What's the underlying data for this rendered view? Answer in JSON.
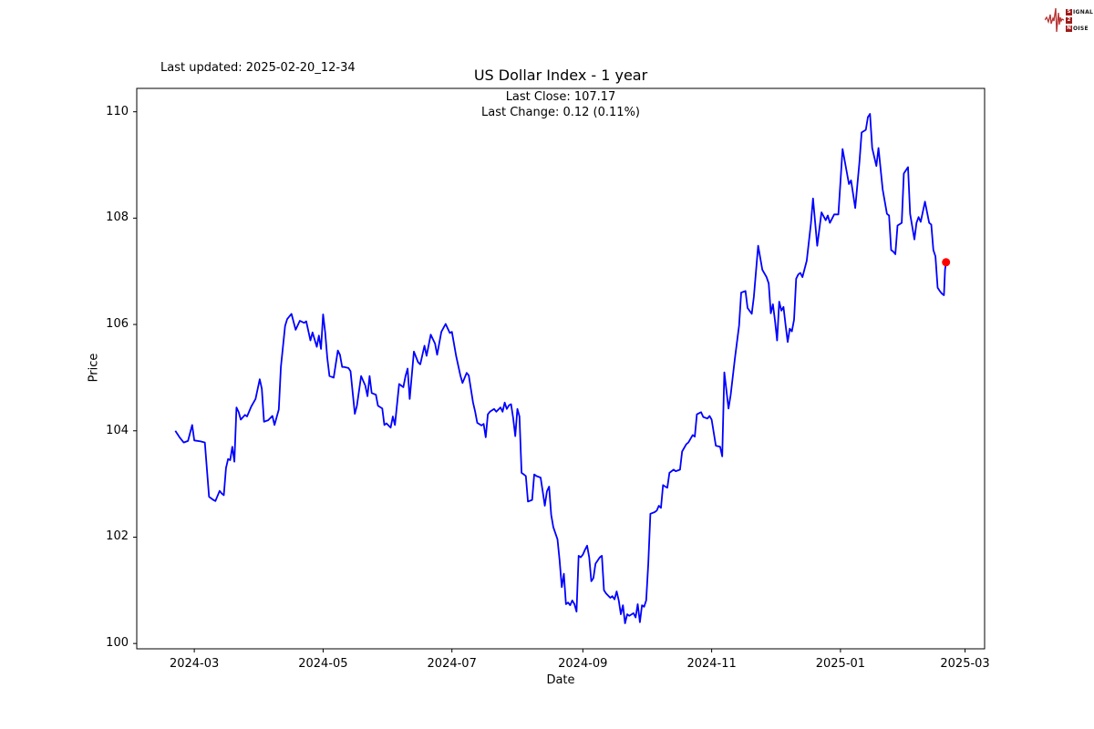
{
  "header": {
    "last_updated": "Last updated: 2025-02-20_12-34"
  },
  "logo": {
    "rows": [
      {
        "boxed": "S",
        "rest": "IGNAL"
      },
      {
        "boxed": "2",
        "rest": ""
      },
      {
        "boxed": "N",
        "rest": "OISE"
      }
    ],
    "waveform_color": "#b73333",
    "box_color": "#9e1b1b"
  },
  "chart_data": {
    "type": "line",
    "title": "US Dollar Index - 1 year",
    "subtitle_lines": [
      "Last Close: 107.17",
      "Last Change: 0.12 (0.11%)"
    ],
    "xlabel": "Date",
    "ylabel": "Price",
    "last_close": 107.17,
    "last_change": 0.12,
    "last_change_pct": "0.11%",
    "line_color": "#0000ff",
    "marker_color": "#ff0000",
    "background": "#ffffff",
    "grid": false,
    "legend": "none",
    "x_unit": "days since 2024-02-21",
    "x_start_date": "2024-02-21",
    "x_end_date": "2025-02-20",
    "xlim_days": [
      -18.25,
      383.25
    ],
    "ylim": [
      99.9,
      110.44
    ],
    "yticks": [
      100,
      102,
      104,
      106,
      108,
      110
    ],
    "xticks": [
      {
        "label": "2024-03",
        "day": 9
      },
      {
        "label": "2024-05",
        "day": 70
      },
      {
        "label": "2024-07",
        "day": 131
      },
      {
        "label": "2024-09",
        "day": 193
      },
      {
        "label": "2024-11",
        "day": 254
      },
      {
        "label": "2025-01",
        "day": 315
      },
      {
        "label": "2025-03",
        "day": 374
      }
    ],
    "points": [
      [
        0,
        104.0
      ],
      [
        2,
        103.88
      ],
      [
        4,
        103.78
      ],
      [
        6,
        103.81
      ],
      [
        8,
        104.11
      ],
      [
        9,
        103.82
      ],
      [
        12,
        103.8
      ],
      [
        14,
        103.78
      ],
      [
        15,
        103.27
      ],
      [
        16,
        102.76
      ],
      [
        18,
        102.7
      ],
      [
        19,
        102.68
      ],
      [
        21,
        102.87
      ],
      [
        22,
        102.82
      ],
      [
        23,
        102.79
      ],
      [
        24,
        103.3
      ],
      [
        25,
        103.47
      ],
      [
        26,
        103.45
      ],
      [
        27,
        103.7
      ],
      [
        28,
        103.42
      ],
      [
        29,
        104.44
      ],
      [
        30,
        104.35
      ],
      [
        31,
        104.21
      ],
      [
        33,
        104.3
      ],
      [
        34,
        104.27
      ],
      [
        36,
        104.46
      ],
      [
        38,
        104.6
      ],
      [
        40,
        104.97
      ],
      [
        41,
        104.79
      ],
      [
        42,
        104.17
      ],
      [
        44,
        104.2
      ],
      [
        46,
        104.28
      ],
      [
        47,
        104.11
      ],
      [
        49,
        104.4
      ],
      [
        50,
        105.2
      ],
      [
        52,
        105.97
      ],
      [
        53,
        106.1
      ],
      [
        55,
        106.2
      ],
      [
        57,
        105.9
      ],
      [
        59,
        106.07
      ],
      [
        61,
        106.03
      ],
      [
        62,
        106.06
      ],
      [
        64,
        105.7
      ],
      [
        65,
        105.85
      ],
      [
        67,
        105.58
      ],
      [
        68,
        105.79
      ],
      [
        69,
        105.54
      ],
      [
        70,
        106.19
      ],
      [
        71,
        105.85
      ],
      [
        72,
        105.37
      ],
      [
        73,
        105.03
      ],
      [
        75,
        105.0
      ],
      [
        77,
        105.51
      ],
      [
        78,
        105.43
      ],
      [
        79,
        105.2
      ],
      [
        80,
        105.2
      ],
      [
        82,
        105.18
      ],
      [
        83,
        105.12
      ],
      [
        85,
        104.32
      ],
      [
        86,
        104.47
      ],
      [
        88,
        105.03
      ],
      [
        90,
        104.85
      ],
      [
        91,
        104.65
      ],
      [
        92,
        105.03
      ],
      [
        93,
        104.71
      ],
      [
        95,
        104.68
      ],
      [
        96,
        104.47
      ],
      [
        98,
        104.42
      ],
      [
        99,
        104.11
      ],
      [
        100,
        104.14
      ],
      [
        102,
        104.06
      ],
      [
        103,
        104.27
      ],
      [
        104,
        104.11
      ],
      [
        106,
        104.88
      ],
      [
        108,
        104.82
      ],
      [
        109,
        105.03
      ],
      [
        110,
        105.17
      ],
      [
        111,
        104.6
      ],
      [
        113,
        105.49
      ],
      [
        115,
        105.29
      ],
      [
        116,
        105.25
      ],
      [
        118,
        105.6
      ],
      [
        119,
        105.41
      ],
      [
        121,
        105.81
      ],
      [
        123,
        105.64
      ],
      [
        124,
        105.43
      ],
      [
        126,
        105.86
      ],
      [
        128,
        106.01
      ],
      [
        130,
        105.84
      ],
      [
        131,
        105.86
      ],
      [
        133,
        105.41
      ],
      [
        135,
        105.04
      ],
      [
        136,
        104.9
      ],
      [
        138,
        105.09
      ],
      [
        139,
        105.04
      ],
      [
        141,
        104.53
      ],
      [
        142,
        104.36
      ],
      [
        143,
        104.15
      ],
      [
        145,
        104.1
      ],
      [
        146,
        104.13
      ],
      [
        147,
        103.88
      ],
      [
        148,
        104.31
      ],
      [
        149,
        104.36
      ],
      [
        151,
        104.41
      ],
      [
        152,
        104.36
      ],
      [
        154,
        104.44
      ],
      [
        155,
        104.36
      ],
      [
        156,
        104.53
      ],
      [
        157,
        104.41
      ],
      [
        158,
        104.48
      ],
      [
        159,
        104.5
      ],
      [
        160,
        104.24
      ],
      [
        161,
        103.9
      ],
      [
        162,
        104.41
      ],
      [
        163,
        104.27
      ],
      [
        164,
        103.21
      ],
      [
        165,
        103.18
      ],
      [
        166,
        103.15
      ],
      [
        167,
        102.67
      ],
      [
        169,
        102.7
      ],
      [
        170,
        103.18
      ],
      [
        171,
        103.15
      ],
      [
        173,
        103.12
      ],
      [
        174,
        102.86
      ],
      [
        175,
        102.59
      ],
      [
        176,
        102.86
      ],
      [
        177,
        102.95
      ],
      [
        178,
        102.42
      ],
      [
        179,
        102.19
      ],
      [
        181,
        101.96
      ],
      [
        182,
        101.57
      ],
      [
        183,
        101.06
      ],
      [
        184,
        101.31
      ],
      [
        185,
        100.74
      ],
      [
        186,
        100.77
      ],
      [
        187,
        100.72
      ],
      [
        188,
        100.81
      ],
      [
        189,
        100.74
      ],
      [
        190,
        100.6
      ],
      [
        191,
        101.65
      ],
      [
        192,
        101.62
      ],
      [
        193,
        101.67
      ],
      [
        194,
        101.76
      ],
      [
        195,
        101.84
      ],
      [
        196,
        101.62
      ],
      [
        197,
        101.17
      ],
      [
        198,
        101.23
      ],
      [
        199,
        101.5
      ],
      [
        201,
        101.62
      ],
      [
        202,
        101.65
      ],
      [
        203,
        101.0
      ],
      [
        204,
        100.94
      ],
      [
        206,
        100.86
      ],
      [
        207,
        100.89
      ],
      [
        208,
        100.83
      ],
      [
        209,
        100.98
      ],
      [
        210,
        100.81
      ],
      [
        211,
        100.55
      ],
      [
        212,
        100.72
      ],
      [
        213,
        100.38
      ],
      [
        214,
        100.55
      ],
      [
        215,
        100.52
      ],
      [
        217,
        100.57
      ],
      [
        218,
        100.49
      ],
      [
        219,
        100.74
      ],
      [
        220,
        100.4
      ],
      [
        221,
        100.72
      ],
      [
        222,
        100.69
      ],
      [
        223,
        100.81
      ],
      [
        224,
        101.5
      ],
      [
        225,
        102.44
      ],
      [
        227,
        102.47
      ],
      [
        228,
        102.5
      ],
      [
        229,
        102.59
      ],
      [
        230,
        102.55
      ],
      [
        231,
        102.98
      ],
      [
        232,
        102.95
      ],
      [
        233,
        102.93
      ],
      [
        234,
        103.21
      ],
      [
        236,
        103.27
      ],
      [
        237,
        103.24
      ],
      [
        239,
        103.27
      ],
      [
        240,
        103.61
      ],
      [
        242,
        103.75
      ],
      [
        243,
        103.78
      ],
      [
        245,
        103.92
      ],
      [
        246,
        103.89
      ],
      [
        247,
        104.31
      ],
      [
        249,
        104.35
      ],
      [
        250,
        104.26
      ],
      [
        252,
        104.23
      ],
      [
        253,
        104.28
      ],
      [
        254,
        104.21
      ],
      [
        256,
        103.72
      ],
      [
        258,
        103.7
      ],
      [
        259,
        103.52
      ],
      [
        260,
        105.1
      ],
      [
        262,
        104.42
      ],
      [
        263,
        104.68
      ],
      [
        265,
        105.36
      ],
      [
        267,
        105.98
      ],
      [
        268,
        106.6
      ],
      [
        270,
        106.63
      ],
      [
        271,
        106.31
      ],
      [
        273,
        106.2
      ],
      [
        274,
        106.52
      ],
      [
        276,
        107.48
      ],
      [
        278,
        107.03
      ],
      [
        280,
        106.89
      ],
      [
        281,
        106.77
      ],
      [
        282,
        106.21
      ],
      [
        283,
        106.38
      ],
      [
        284,
        106.07
      ],
      [
        285,
        105.7
      ],
      [
        286,
        106.43
      ],
      [
        287,
        106.26
      ],
      [
        288,
        106.33
      ],
      [
        289,
        105.99
      ],
      [
        290,
        105.67
      ],
      [
        291,
        105.92
      ],
      [
        292,
        105.87
      ],
      [
        293,
        106.09
      ],
      [
        294,
        106.86
      ],
      [
        295,
        106.94
      ],
      [
        296,
        106.97
      ],
      [
        297,
        106.89
      ],
      [
        299,
        107.2
      ],
      [
        301,
        107.9
      ],
      [
        302,
        108.37
      ],
      [
        304,
        107.48
      ],
      [
        306,
        108.11
      ],
      [
        308,
        107.96
      ],
      [
        309,
        108.05
      ],
      [
        310,
        107.91
      ],
      [
        312,
        108.07
      ],
      [
        314,
        108.07
      ],
      [
        316,
        109.3
      ],
      [
        319,
        108.64
      ],
      [
        320,
        108.71
      ],
      [
        322,
        108.19
      ],
      [
        324,
        109.07
      ],
      [
        325,
        109.61
      ],
      [
        327,
        109.66
      ],
      [
        328,
        109.9
      ],
      [
        329,
        109.96
      ],
      [
        330,
        109.32
      ],
      [
        332,
        108.98
      ],
      [
        333,
        109.32
      ],
      [
        334,
        108.93
      ],
      [
        335,
        108.54
      ],
      [
        337,
        108.08
      ],
      [
        338,
        108.05
      ],
      [
        339,
        107.4
      ],
      [
        340,
        107.37
      ],
      [
        341,
        107.32
      ],
      [
        342,
        107.86
      ],
      [
        344,
        107.91
      ],
      [
        345,
        108.84
      ],
      [
        347,
        108.96
      ],
      [
        348,
        108.08
      ],
      [
        350,
        107.6
      ],
      [
        351,
        107.91
      ],
      [
        352,
        108.02
      ],
      [
        353,
        107.93
      ],
      [
        355,
        108.31
      ],
      [
        357,
        107.91
      ],
      [
        358,
        107.88
      ],
      [
        359,
        107.4
      ],
      [
        360,
        107.28
      ],
      [
        361,
        106.69
      ],
      [
        362,
        106.63
      ],
      [
        363,
        106.58
      ],
      [
        364,
        106.55
      ],
      [
        364.5,
        107.03
      ],
      [
        365,
        107.17
      ]
    ]
  }
}
